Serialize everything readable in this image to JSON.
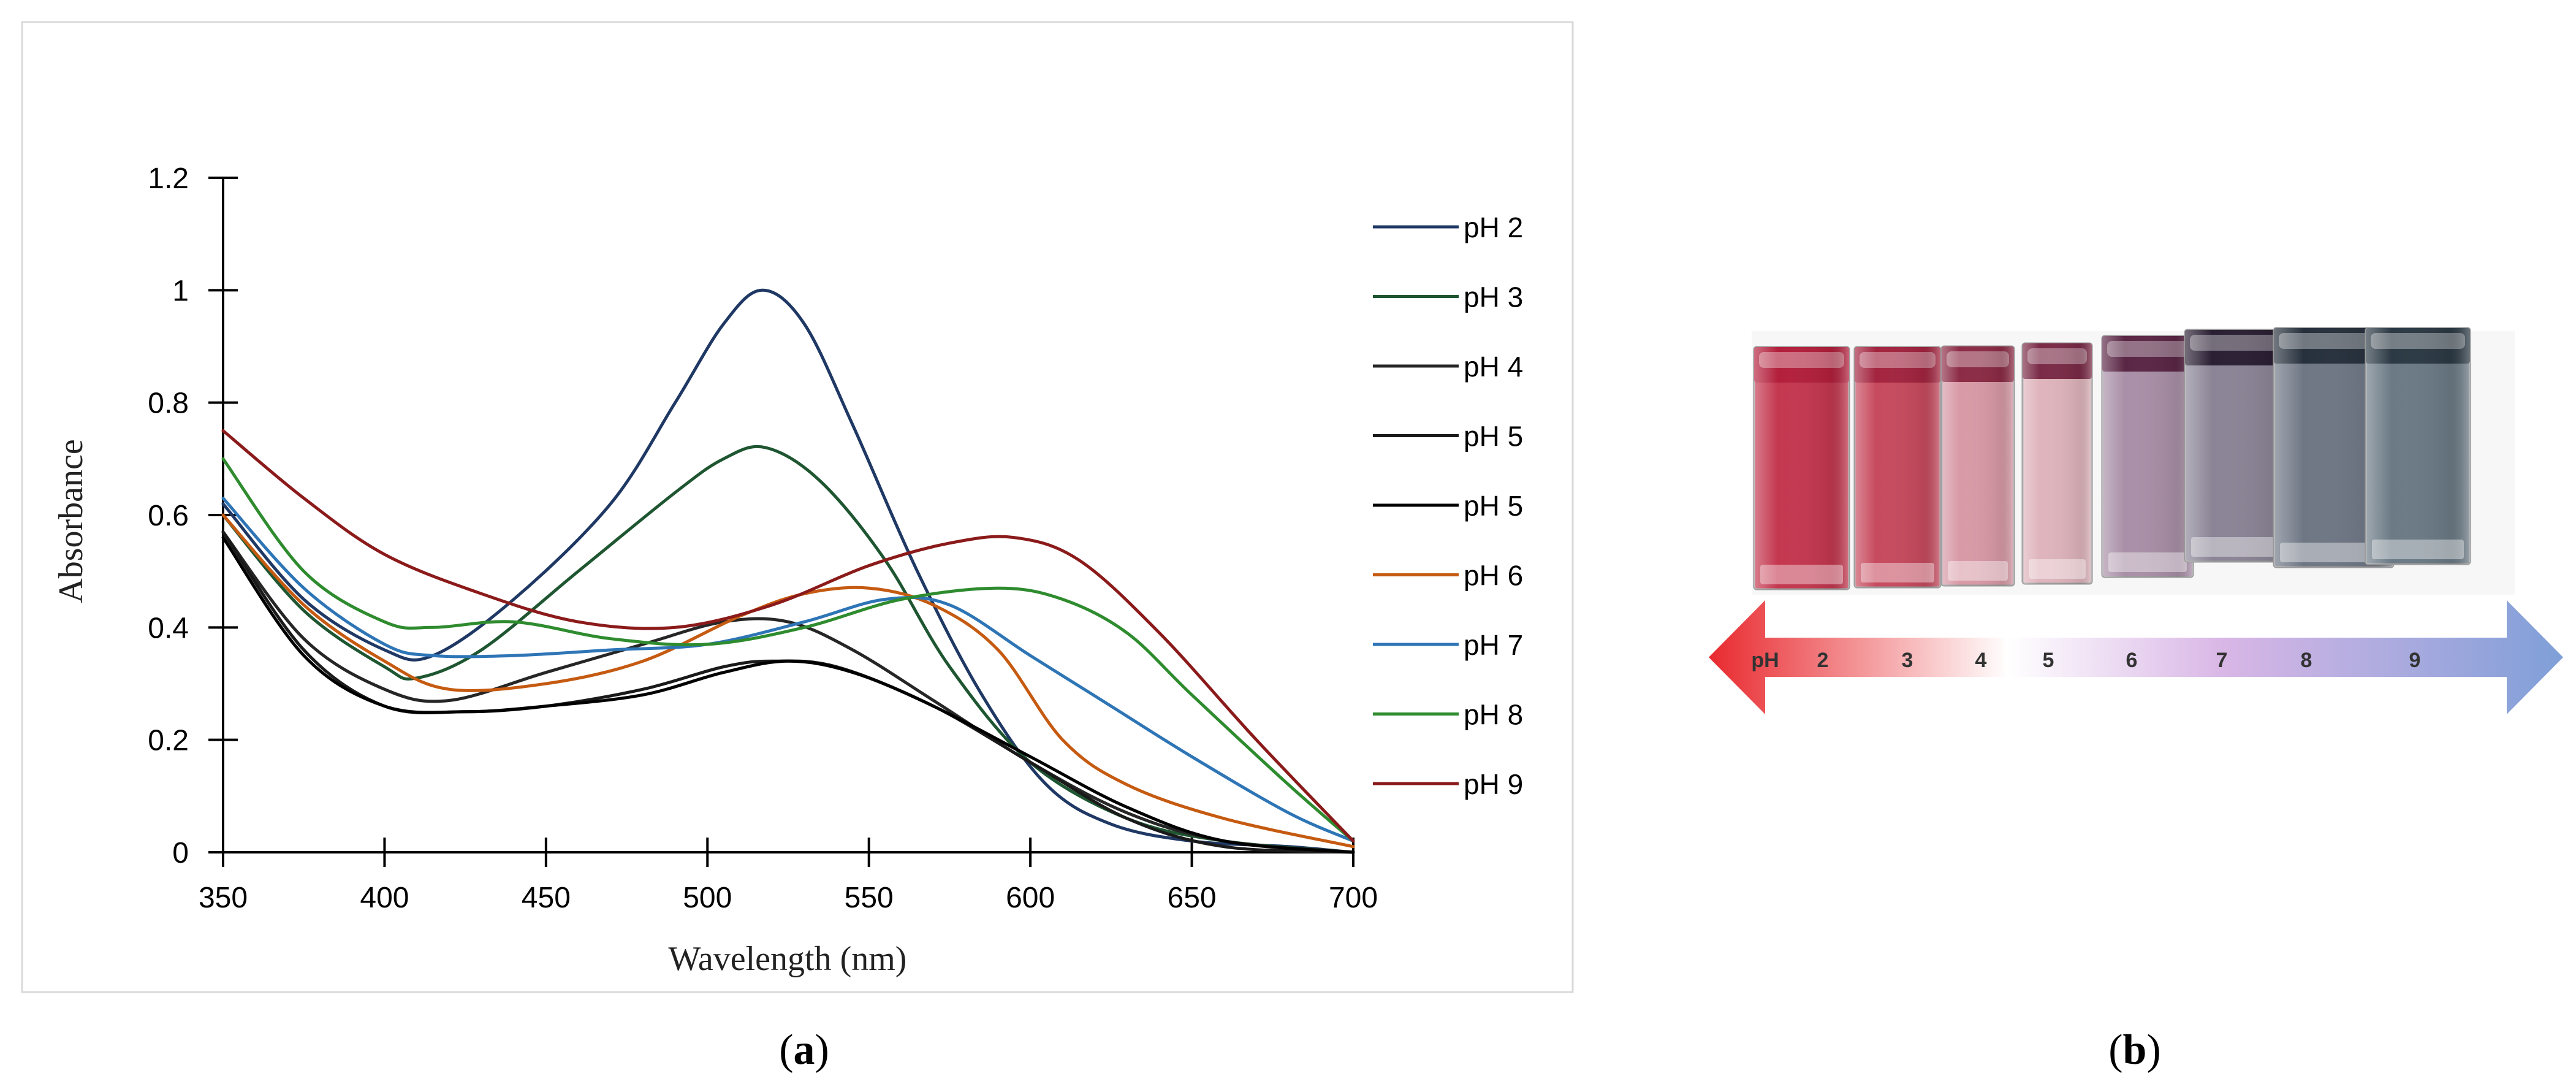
{
  "panels": {
    "a": {
      "caption_open": "(",
      "caption_letter": "a",
      "caption_close": ")"
    },
    "b": {
      "caption_open": "(",
      "caption_letter": "b",
      "caption_close": ")"
    }
  },
  "chart_data": {
    "type": "line",
    "title": "",
    "xlabel": "Wavelength (nm)",
    "ylabel": "Absorbance",
    "xlim": [
      350,
      700
    ],
    "ylim": [
      0,
      1.2
    ],
    "x_ticks": [
      350,
      400,
      450,
      500,
      550,
      600,
      650,
      700
    ],
    "y_ticks": [
      0,
      0.2,
      0.4,
      0.6,
      0.8,
      1,
      1.2
    ],
    "y_tick_labels": [
      "0",
      "0.2",
      "0.4",
      "0.6",
      "0.8",
      "1",
      "1.2"
    ],
    "grid": false,
    "legend_position": "right",
    "series": [
      {
        "name": "pH 2",
        "color": "#1f3864",
        "x": [
          350,
          375,
          400,
          415,
          440,
          470,
          490,
          505,
          517,
          530,
          545,
          565,
          585,
          605,
          625,
          650,
          680,
          700
        ],
        "y": [
          0.62,
          0.45,
          0.36,
          0.35,
          0.45,
          0.62,
          0.8,
          0.94,
          1.0,
          0.94,
          0.76,
          0.5,
          0.28,
          0.12,
          0.05,
          0.02,
          0.01,
          0.0
        ]
      },
      {
        "name": "pH 3",
        "color": "#1e5631",
        "x": [
          350,
          375,
          400,
          410,
          430,
          460,
          490,
          505,
          518,
          535,
          555,
          575,
          600,
          630,
          660,
          700
        ],
        "y": [
          0.6,
          0.43,
          0.33,
          0.31,
          0.36,
          0.5,
          0.64,
          0.7,
          0.72,
          0.66,
          0.52,
          0.33,
          0.16,
          0.06,
          0.02,
          0.0
        ]
      },
      {
        "name": "pH 4",
        "color": "#262626",
        "x": [
          350,
          375,
          400,
          420,
          450,
          480,
          505,
          525,
          545,
          570,
          600,
          630,
          660,
          700
        ],
        "y": [
          0.57,
          0.38,
          0.29,
          0.27,
          0.32,
          0.37,
          0.41,
          0.41,
          0.36,
          0.27,
          0.16,
          0.07,
          0.02,
          0.0
        ]
      },
      {
        "name": "pH 5",
        "color": "#1a1a1a",
        "x": [
          350,
          375,
          400,
          425,
          450,
          480,
          505,
          520,
          540,
          570,
          600,
          630,
          660,
          700
        ],
        "y": [
          0.57,
          0.36,
          0.26,
          0.25,
          0.26,
          0.29,
          0.33,
          0.34,
          0.33,
          0.26,
          0.16,
          0.06,
          0.01,
          0.0
        ]
      },
      {
        "name": "pH 5",
        "color": "#000000",
        "x": [
          350,
          375,
          400,
          425,
          450,
          480,
          505,
          525,
          545,
          570,
          600,
          630,
          660,
          700
        ],
        "y": [
          0.56,
          0.35,
          0.26,
          0.25,
          0.26,
          0.28,
          0.32,
          0.34,
          0.32,
          0.26,
          0.17,
          0.08,
          0.02,
          0.0
        ]
      },
      {
        "name": "pH 6",
        "color": "#c55a11",
        "x": [
          350,
          375,
          400,
          420,
          450,
          480,
          510,
          530,
          550,
          570,
          590,
          610,
          630,
          660,
          700
        ],
        "y": [
          0.6,
          0.44,
          0.34,
          0.29,
          0.3,
          0.34,
          0.42,
          0.46,
          0.47,
          0.44,
          0.36,
          0.2,
          0.12,
          0.06,
          0.01
        ]
      },
      {
        "name": "pH 7",
        "color": "#2e75b6",
        "x": [
          350,
          375,
          400,
          415,
          440,
          470,
          500,
          530,
          555,
          575,
          600,
          625,
          650,
          680,
          700
        ],
        "y": [
          0.63,
          0.47,
          0.37,
          0.35,
          0.35,
          0.36,
          0.37,
          0.41,
          0.45,
          0.44,
          0.35,
          0.26,
          0.17,
          0.07,
          0.02
        ]
      },
      {
        "name": "pH 8",
        "color": "#2e8b2e",
        "x": [
          350,
          375,
          400,
          415,
          440,
          470,
          500,
          530,
          560,
          590,
          610,
          630,
          650,
          680,
          700
        ],
        "y": [
          0.7,
          0.5,
          0.41,
          0.4,
          0.41,
          0.38,
          0.37,
          0.4,
          0.45,
          0.47,
          0.45,
          0.39,
          0.28,
          0.12,
          0.02
        ]
      },
      {
        "name": "pH 9",
        "color": "#8b1a1a",
        "x": [
          350,
          375,
          400,
          430,
          460,
          490,
          520,
          550,
          575,
          595,
          615,
          640,
          670,
          700
        ],
        "y": [
          0.75,
          0.63,
          0.53,
          0.46,
          0.41,
          0.4,
          0.44,
          0.51,
          0.55,
          0.56,
          0.52,
          0.39,
          0.2,
          0.02
        ]
      }
    ]
  },
  "photo": {
    "arrow_label": "pH",
    "ph_values": [
      "2",
      "3",
      "4",
      "5",
      "6",
      "7",
      "8",
      "9"
    ],
    "cuvette_colors": [
      "#c4374f",
      "#c74a5e",
      "#d89aa6",
      "#dfb4bc",
      "#a98fa7",
      "#8b8496",
      "#6f7785",
      "#6b7a85"
    ],
    "cap_colors": [
      "#b31f3c",
      "#a3243f",
      "#8c2b45",
      "#7a2a46",
      "#5a2645",
      "#2a1f33",
      "#26303c",
      "#2b3944"
    ],
    "arrow_colors": [
      "#e8292e",
      "#ffffff",
      "#d9b7e6",
      "#7f9fd8"
    ]
  }
}
